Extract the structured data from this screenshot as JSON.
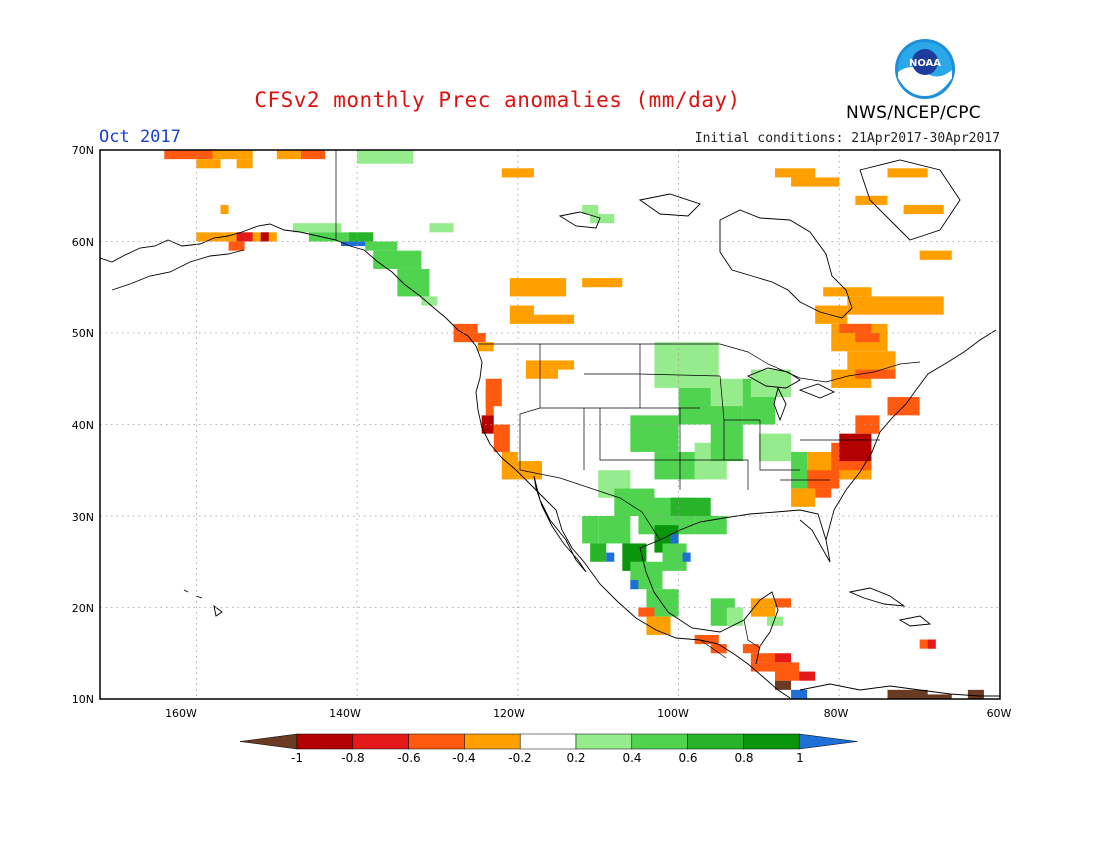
{
  "header": {
    "title": "CFSv2 monthly Prec anomalies (mm/day)",
    "month": "Oct 2017",
    "initial_conditions": "Initial conditions: 21Apr2017-30Apr2017",
    "agency": "NWS/NCEP/CPC",
    "logo_text": "NOAA"
  },
  "map": {
    "lon_range": [
      -172,
      -60
    ],
    "lat_range": [
      10,
      70
    ],
    "lat_ticks": [
      "70N",
      "60N",
      "50N",
      "40N",
      "30N",
      "20N",
      "10N"
    ],
    "lon_ticks": [
      "160W",
      "140W",
      "120W",
      "100W",
      "80W",
      "60W"
    ],
    "grid": "dotted"
  },
  "colorbar": {
    "labels": [
      "-1",
      "-0.8",
      "-0.6",
      "-0.4",
      "-0.2",
      "0.2",
      "0.4",
      "0.6",
      "0.8",
      "1"
    ],
    "colors": [
      "#6b3a22",
      "#b40000",
      "#e41a1a",
      "#ff5a10",
      "#ffa000",
      "#ffffff",
      "#96ec8c",
      "#50d450",
      "#28b428",
      "#0a960a",
      "#1e6fd8"
    ],
    "units": "mm/day"
  },
  "anomaly_regions": [
    {
      "name": "northern Alaska",
      "value": -0.3
    },
    {
      "name": "southwest Alaska",
      "value": -0.4
    },
    {
      "name": "Gulf of Alaska coast",
      "value": 0.5
    },
    {
      "name": "southeast Alaska coast",
      "value": 1.0
    },
    {
      "name": "northern Canadian prairies",
      "value": -0.3
    },
    {
      "name": "Oregon coast",
      "value": -0.6
    },
    {
      "name": "northern California coast",
      "value": -0.9
    },
    {
      "name": "central Plains",
      "value": 0.4
    },
    {
      "name": "Texas / northern Mexico",
      "value": 0.7
    },
    {
      "name": "Sierra Madre Occidental",
      "value": 0.9
    },
    {
      "name": "Virginia / North Carolina",
      "value": -0.9
    },
    {
      "name": "Mid-Atlantic coast",
      "value": -0.5
    },
    {
      "name": "Quebec / Labrador",
      "value": -0.4
    },
    {
      "name": "Central America",
      "value": -0.6
    },
    {
      "name": "northern South America",
      "value": -1.0
    }
  ]
}
